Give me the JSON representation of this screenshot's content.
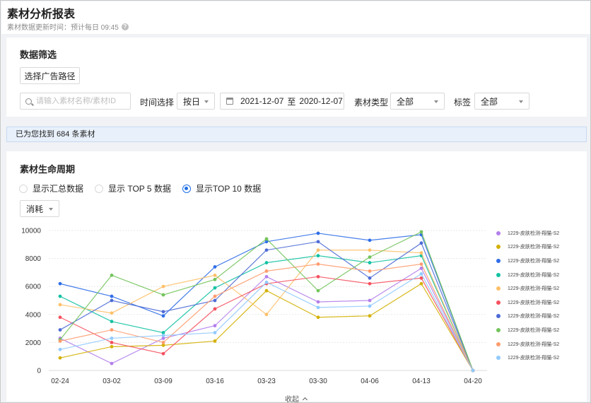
{
  "header": {
    "title": "素材分析报表",
    "update_note": "素材数据更新时间：预计每日 09:45",
    "help_icon": "question-circle-icon"
  },
  "filters": {
    "section_title": "数据筛选",
    "choose_path_label": "选择广告路径",
    "search_placeholder": "请输入素材名称/素材ID",
    "time_label": "时间选择",
    "time_granularity": "按日",
    "date_start": "2021-12-07",
    "date_sep": "至",
    "date_end": "2020-12-07",
    "type_label": "素材类型",
    "type_value": "全部",
    "tag_label": "标签",
    "tag_value": "全部"
  },
  "result": {
    "text": "已为您找到 684 条素材"
  },
  "lifecycle": {
    "section_title": "素材生命周期",
    "radios": [
      {
        "label": "显示汇总数据",
        "checked": false
      },
      {
        "label": "显示 TOP 5 数据",
        "checked": false
      },
      {
        "label": "显示TOP 10 数据",
        "checked": true
      }
    ],
    "metric_select": "消耗",
    "collapse_label": "收起"
  },
  "chart_data": {
    "type": "line",
    "x": [
      "02-24",
      "03-02",
      "03-09",
      "03-16",
      "03-23",
      "03-30",
      "04-06",
      "04-13",
      "04-20"
    ],
    "y_ticks": [
      0,
      2000,
      4000,
      6000,
      8000,
      10000
    ],
    "ylim": [
      0,
      10000
    ],
    "grid": "horizontal-dashed",
    "legend_position": "right",
    "series": [
      {
        "name": "1229-皮肤检测-翔猫-S2",
        "color": "#b37feb",
        "values": [
          2300,
          500,
          2300,
          3200,
          6700,
          4900,
          5000,
          7300,
          0
        ]
      },
      {
        "name": "1229-皮肤检测-翔猫-S2",
        "color": "#d4b106",
        "values": [
          900,
          1700,
          1800,
          2100,
          5700,
          3800,
          3900,
          6200,
          0
        ]
      },
      {
        "name": "1229-皮肤检测-翔猫-S2",
        "color": "#2f6ee8",
        "values": [
          6200,
          5300,
          3900,
          7400,
          9200,
          9800,
          9300,
          9700,
          0
        ]
      },
      {
        "name": "1229-皮肤检测-翔猫-S2",
        "color": "#13c2a3",
        "values": [
          5300,
          3500,
          2700,
          5900,
          7700,
          8200,
          7700,
          8200,
          0
        ]
      },
      {
        "name": "1229-皮肤检测-翔猫-S2",
        "color": "#ffc069",
        "values": [
          4700,
          4100,
          6000,
          6800,
          4000,
          8600,
          8600,
          8400,
          0
        ]
      },
      {
        "name": "1229-皮肤检测-翔猫-S2",
        "color": "#f5515f",
        "values": [
          3800,
          2000,
          1200,
          4400,
          6200,
          6700,
          6200,
          6600,
          0
        ]
      },
      {
        "name": "1229-皮肤检测-翔猫-S2",
        "color": "#4e6bd6",
        "values": [
          2900,
          5000,
          4200,
          5000,
          8600,
          9200,
          6600,
          9100,
          0
        ]
      },
      {
        "name": "1229-皮肤检测-翔猫-S2",
        "color": "#73c45c",
        "values": [
          2200,
          6800,
          5400,
          6500,
          9400,
          5700,
          8100,
          9900,
          0
        ]
      },
      {
        "name": "1229-皮肤检测-翔猫-S2",
        "color": "#ff9c6e",
        "values": [
          2100,
          2900,
          2000,
          5300,
          7100,
          7600,
          7100,
          7600,
          0
        ]
      },
      {
        "name": "1229-皮肤检测-翔猫-S2",
        "color": "#91caff",
        "values": [
          1500,
          2300,
          2500,
          2700,
          6300,
          4500,
          4600,
          6900,
          0
        ]
      }
    ]
  }
}
